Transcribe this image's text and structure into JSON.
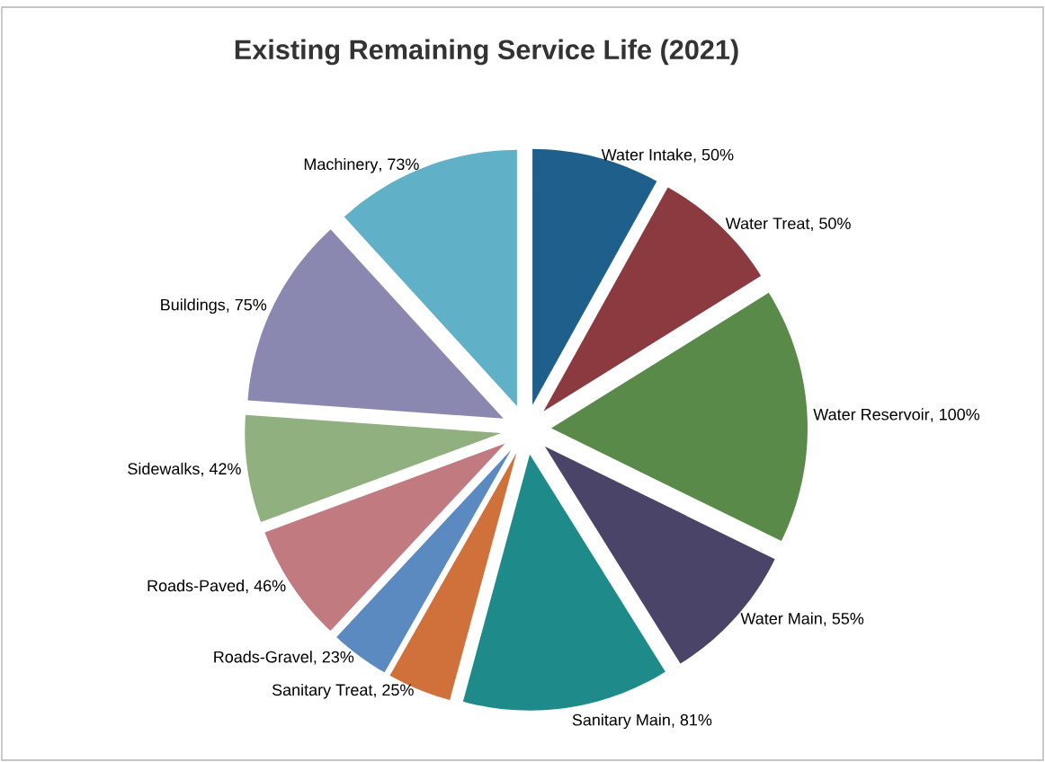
{
  "chart_data": {
    "type": "pie",
    "title": "Existing Remaining Service Life (2021)",
    "categories": [
      "Water Intake",
      "Water Treat",
      "Water Reservoir",
      "Water Main",
      "Sanitary Main",
      "Sanitary Treat",
      "Roads-Gravel",
      "Roads-Paved",
      "Sidewalks",
      "Buildings",
      "Machinery"
    ],
    "values": [
      50,
      50,
      100,
      55,
      81,
      25,
      23,
      46,
      42,
      75,
      73
    ],
    "value_labels": [
      ", 50%",
      ", 50%",
      ", 100%",
      ", 55%",
      ", 81%",
      ", 25%",
      ", 23%",
      ", 46%",
      ", 42%",
      ", 75%",
      ", 73%"
    ],
    "colors": [
      "#1f5f8b",
      "#8b3a3f",
      "#5a8a4a",
      "#4a4468",
      "#1f8a8a",
      "#d0703a",
      "#5a8ac0",
      "#c07a80",
      "#90b080",
      "#8a88b0",
      "#60b0c8"
    ]
  }
}
